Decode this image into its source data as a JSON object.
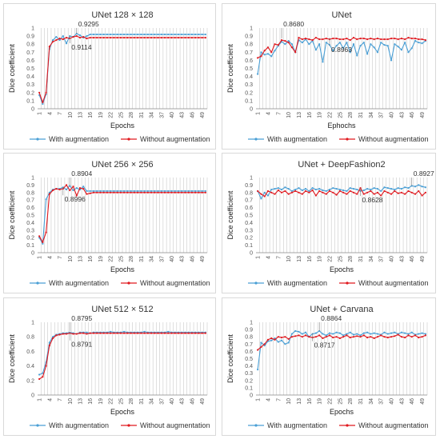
{
  "colors": {
    "with_aug": "#4a9fd5",
    "without_aug": "#e0191f",
    "grid": "#bfbfbf"
  },
  "chart_data": [
    {
      "type": "line",
      "title": "UNet 128 × 128",
      "xlabel": "Epochs",
      "ylabel": "Dice coefficient",
      "ylim": [
        0,
        1
      ],
      "yticks": [
        "0",
        "0.1",
        "0.2",
        "0.3",
        "0.4",
        "0.5",
        "0.6",
        "0.7",
        "0.8",
        "0.9",
        "1"
      ],
      "xticks": [
        1,
        4,
        7,
        10,
        13,
        16,
        19,
        22,
        25,
        28,
        31,
        34,
        37,
        40,
        43,
        46,
        49
      ],
      "legend_position": "bottom",
      "annotations": [
        {
          "text": "0.9295",
          "x": 12,
          "y": 0.93,
          "label_pos": "above"
        },
        {
          "text": "0.9114",
          "x": 10,
          "y": 0.91,
          "label_pos": "below"
        }
      ],
      "series": [
        {
          "name": "With augmentation",
          "values": [
            0.17,
            0.06,
            0.18,
            0.74,
            0.85,
            0.89,
            0.85,
            0.9,
            0.81,
            0.9,
            0.89,
            0.93,
            0.91,
            0.88,
            0.9,
            0.92,
            0.92,
            0.92,
            0.92,
            0.92,
            0.92,
            0.92,
            0.92,
            0.92,
            0.92,
            0.92,
            0.92,
            0.92,
            0.92,
            0.92,
            0.92,
            0.92,
            0.92,
            0.92,
            0.92,
            0.92,
            0.92,
            0.92,
            0.92,
            0.92,
            0.92,
            0.92,
            0.92,
            0.92,
            0.92,
            0.92,
            0.92,
            0.92,
            0.92,
            0.92
          ]
        },
        {
          "name": "Without augmentation",
          "values": [
            0.2,
            0.08,
            0.2,
            0.77,
            0.83,
            0.85,
            0.87,
            0.86,
            0.88,
            0.87,
            0.89,
            0.9,
            0.88,
            0.89,
            0.87,
            0.88,
            0.88,
            0.88,
            0.88,
            0.88,
            0.88,
            0.88,
            0.88,
            0.88,
            0.88,
            0.88,
            0.88,
            0.88,
            0.88,
            0.88,
            0.88,
            0.88,
            0.88,
            0.88,
            0.88,
            0.88,
            0.88,
            0.88,
            0.88,
            0.88,
            0.88,
            0.88,
            0.88,
            0.88,
            0.88,
            0.88,
            0.88,
            0.88,
            0.88,
            0.88
          ]
        }
      ]
    },
    {
      "type": "line",
      "title": "UNet",
      "xlabel": "Ephochs",
      "ylabel": "Dice coefficient",
      "ylim": [
        0,
        1
      ],
      "yticks": [
        "0",
        "0.1",
        "0.2",
        "0.3",
        "0.4",
        "0.5",
        "0.6",
        "0.7",
        "0.8",
        "0.9",
        "1"
      ],
      "xticks": [
        1,
        4,
        7,
        10,
        13,
        16,
        19,
        22,
        25,
        28,
        31,
        34,
        37,
        40,
        43,
        46,
        49
      ],
      "legend_position": "bottom",
      "annotations": [
        {
          "text": "0.8680",
          "x": 8,
          "y": 0.87,
          "label_pos": "above"
        },
        {
          "text": "0.8963",
          "x": 22,
          "y": 0.88,
          "label_pos": "below"
        }
      ],
      "series": [
        {
          "name": "With augmentation",
          "values": [
            0.43,
            0.7,
            0.67,
            0.68,
            0.65,
            0.72,
            0.78,
            0.83,
            0.8,
            0.84,
            0.8,
            0.7,
            0.85,
            0.82,
            0.86,
            0.8,
            0.84,
            0.73,
            0.8,
            0.58,
            0.82,
            0.79,
            0.72,
            0.78,
            0.82,
            0.75,
            0.82,
            0.7,
            0.8,
            0.66,
            0.78,
            0.82,
            0.68,
            0.8,
            0.76,
            0.7,
            0.82,
            0.79,
            0.78,
            0.6,
            0.8,
            0.77,
            0.73,
            0.82,
            0.7,
            0.75,
            0.84,
            0.82,
            0.81,
            0.84
          ]
        },
        {
          "name": "Without augmentation",
          "values": [
            0.63,
            0.65,
            0.72,
            0.76,
            0.7,
            0.8,
            0.79,
            0.85,
            0.84,
            0.82,
            0.76,
            0.7,
            0.88,
            0.86,
            0.87,
            0.86,
            0.85,
            0.88,
            0.86,
            0.86,
            0.87,
            0.86,
            0.87,
            0.87,
            0.86,
            0.86,
            0.87,
            0.85,
            0.88,
            0.86,
            0.87,
            0.87,
            0.86,
            0.87,
            0.86,
            0.87,
            0.86,
            0.86,
            0.86,
            0.87,
            0.87,
            0.86,
            0.87,
            0.86,
            0.88,
            0.87,
            0.87,
            0.86,
            0.86,
            0.85
          ]
        }
      ]
    },
    {
      "type": "line",
      "title": "UNet 256 × 256",
      "xlabel": "Epochs",
      "ylabel": "Dice coefficient",
      "ylim": [
        0,
        1
      ],
      "yticks": [
        "0",
        "0.1",
        "0.2",
        "0.3",
        "0.4",
        "0.5",
        "0.6",
        "0.7",
        "0.8",
        "0.9",
        "1"
      ],
      "xticks": [
        1,
        4,
        7,
        10,
        13,
        16,
        19,
        22,
        25,
        28,
        31,
        34,
        37,
        40,
        43,
        46,
        49
      ],
      "legend_position": "bottom",
      "annotations": [
        {
          "text": "0.8904",
          "x": 10,
          "y": 0.89,
          "label_pos": "above"
        },
        {
          "text": "0.8996",
          "x": 8,
          "y": 0.87,
          "label_pos": "below"
        }
      ],
      "series": [
        {
          "name": "With augmentation",
          "values": [
            0.2,
            0.12,
            0.71,
            0.8,
            0.84,
            0.85,
            0.85,
            0.87,
            0.84,
            0.89,
            0.83,
            0.86,
            0.84,
            0.88,
            0.82,
            0.82,
            0.82,
            0.82,
            0.82,
            0.82,
            0.82,
            0.82,
            0.82,
            0.82,
            0.82,
            0.82,
            0.82,
            0.82,
            0.82,
            0.82,
            0.82,
            0.82,
            0.82,
            0.82,
            0.82,
            0.82,
            0.82,
            0.82,
            0.82,
            0.82,
            0.82,
            0.82,
            0.82,
            0.82,
            0.82,
            0.82,
            0.82,
            0.82,
            0.82,
            0.82
          ]
        },
        {
          "name": "Without augmentation",
          "values": [
            0.22,
            0.14,
            0.27,
            0.78,
            0.83,
            0.85,
            0.84,
            0.85,
            0.9,
            0.83,
            0.88,
            0.76,
            0.86,
            0.85,
            0.78,
            0.79,
            0.8,
            0.8,
            0.8,
            0.8,
            0.8,
            0.8,
            0.8,
            0.8,
            0.8,
            0.8,
            0.8,
            0.8,
            0.8,
            0.8,
            0.8,
            0.8,
            0.8,
            0.8,
            0.8,
            0.8,
            0.8,
            0.8,
            0.8,
            0.8,
            0.8,
            0.8,
            0.8,
            0.8,
            0.8,
            0.8,
            0.8,
            0.8,
            0.8,
            0.8
          ]
        }
      ]
    },
    {
      "type": "line",
      "title": "UNet + DeepFashion2",
      "xlabel": "Epochs",
      "ylabel": "Dice coefficient",
      "ylim": [
        0,
        1
      ],
      "yticks": [
        "0",
        "0.1",
        "0.2",
        "0.3",
        "0.4",
        "0.5",
        "0.6",
        "0.7",
        "0.8",
        "0.9",
        "1"
      ],
      "xticks": [
        1,
        4,
        7,
        10,
        13,
        16,
        19,
        22,
        25,
        28,
        31,
        34,
        37,
        40,
        43,
        46,
        49
      ],
      "legend_position": "bottom",
      "annotations": [
        {
          "text": "0.8927",
          "x": 46,
          "y": 0.89,
          "label_pos": "above"
        },
        {
          "text": "0.8628",
          "x": 31,
          "y": 0.86,
          "label_pos": "below"
        }
      ],
      "series": [
        {
          "name": "With augmentation",
          "values": [
            0.82,
            0.72,
            0.8,
            0.76,
            0.84,
            0.85,
            0.86,
            0.84,
            0.87,
            0.85,
            0.82,
            0.84,
            0.86,
            0.83,
            0.85,
            0.82,
            0.86,
            0.84,
            0.85,
            0.83,
            0.82,
            0.84,
            0.86,
            0.85,
            0.84,
            0.83,
            0.82,
            0.86,
            0.85,
            0.84,
            0.82,
            0.83,
            0.85,
            0.84,
            0.86,
            0.85,
            0.82,
            0.87,
            0.86,
            0.85,
            0.84,
            0.86,
            0.85,
            0.87,
            0.86,
            0.89,
            0.88,
            0.9,
            0.88,
            0.87
          ]
        },
        {
          "name": "Without augmentation",
          "values": [
            0.82,
            0.78,
            0.75,
            0.82,
            0.8,
            0.78,
            0.83,
            0.8,
            0.82,
            0.78,
            0.8,
            0.82,
            0.8,
            0.78,
            0.82,
            0.8,
            0.83,
            0.76,
            0.82,
            0.8,
            0.78,
            0.82,
            0.8,
            0.77,
            0.82,
            0.8,
            0.78,
            0.82,
            0.8,
            0.78,
            0.86,
            0.78,
            0.8,
            0.82,
            0.78,
            0.8,
            0.76,
            0.82,
            0.8,
            0.78,
            0.82,
            0.79,
            0.8,
            0.78,
            0.82,
            0.8,
            0.78,
            0.82,
            0.76,
            0.8
          ]
        }
      ]
    },
    {
      "type": "line",
      "title": "UNet 512 × 512",
      "xlabel": "Epochs",
      "ylabel": "Dice coefficient",
      "ylim": [
        0,
        1
      ],
      "yticks": [
        "0",
        "0.2",
        "0.4",
        "0.6",
        "0.8",
        "1"
      ],
      "xticks": [
        1,
        4,
        7,
        10,
        13,
        16,
        19,
        22,
        25,
        28,
        31,
        34,
        37,
        40,
        43,
        46,
        49
      ],
      "legend_position": "bottom",
      "annotations": [
        {
          "text": "0.8795",
          "x": 10,
          "y": 0.88,
          "label_pos": "above"
        },
        {
          "text": "0.8791",
          "x": 10,
          "y": 0.86,
          "label_pos": "below"
        }
      ],
      "series": [
        {
          "name": "With augmentation",
          "values": [
            0.28,
            0.3,
            0.45,
            0.72,
            0.8,
            0.83,
            0.84,
            0.85,
            0.85,
            0.86,
            0.85,
            0.84,
            0.86,
            0.86,
            0.86,
            0.85,
            0.86,
            0.86,
            0.86,
            0.86,
            0.86,
            0.87,
            0.86,
            0.86,
            0.86,
            0.87,
            0.86,
            0.86,
            0.86,
            0.86,
            0.86,
            0.87,
            0.86,
            0.86,
            0.86,
            0.86,
            0.86,
            0.86,
            0.87,
            0.86,
            0.86,
            0.86,
            0.86,
            0.86,
            0.86,
            0.86,
            0.86,
            0.86,
            0.86,
            0.86
          ]
        },
        {
          "name": "Without augmentation",
          "values": [
            0.22,
            0.25,
            0.4,
            0.68,
            0.78,
            0.82,
            0.83,
            0.84,
            0.84,
            0.85,
            0.84,
            0.84,
            0.85,
            0.85,
            0.84,
            0.85,
            0.85,
            0.85,
            0.85,
            0.85,
            0.85,
            0.85,
            0.85,
            0.85,
            0.85,
            0.85,
            0.85,
            0.85,
            0.85,
            0.85,
            0.85,
            0.85,
            0.85,
            0.85,
            0.85,
            0.85,
            0.85,
            0.85,
            0.85,
            0.85,
            0.85,
            0.85,
            0.85,
            0.85,
            0.85,
            0.85,
            0.85,
            0.85,
            0.85,
            0.85
          ]
        }
      ]
    },
    {
      "type": "line",
      "title": "UNet + Carvana",
      "xlabel": "Epochs",
      "ylabel": "Dice coefficient",
      "ylim": [
        0,
        1
      ],
      "yticks": [
        "0",
        "0.1",
        "0.2",
        "0.3",
        "0.4",
        "0.5",
        "0.6",
        "0.7",
        "0.8",
        "0.9",
        "1"
      ],
      "xticks": [
        1,
        4,
        7,
        10,
        13,
        16,
        19,
        22,
        25,
        28,
        31,
        34,
        37,
        40,
        43,
        46,
        49
      ],
      "legend_position": "bottom",
      "annotations": [
        {
          "text": "0.8864",
          "x": 19,
          "y": 0.88,
          "label_pos": "above"
        },
        {
          "text": "0.8717",
          "x": 17,
          "y": 0.85,
          "label_pos": "below"
        }
      ],
      "series": [
        {
          "name": "With augmentation",
          "values": [
            0.35,
            0.72,
            0.68,
            0.74,
            0.75,
            0.78,
            0.73,
            0.75,
            0.7,
            0.72,
            0.84,
            0.88,
            0.87,
            0.84,
            0.86,
            0.8,
            0.84,
            0.85,
            0.88,
            0.84,
            0.82,
            0.85,
            0.84,
            0.86,
            0.85,
            0.82,
            0.84,
            0.86,
            0.83,
            0.84,
            0.82,
            0.85,
            0.86,
            0.84,
            0.85,
            0.84,
            0.83,
            0.86,
            0.84,
            0.85,
            0.86,
            0.84,
            0.86,
            0.85,
            0.84,
            0.86,
            0.83,
            0.84,
            0.85,
            0.84
          ]
        },
        {
          "name": "Without augmentation",
          "values": [
            0.62,
            0.66,
            0.7,
            0.76,
            0.78,
            0.76,
            0.8,
            0.79,
            0.8,
            0.77,
            0.8,
            0.81,
            0.82,
            0.8,
            0.82,
            0.8,
            0.79,
            0.8,
            0.82,
            0.78,
            0.8,
            0.82,
            0.79,
            0.8,
            0.78,
            0.8,
            0.82,
            0.79,
            0.8,
            0.81,
            0.8,
            0.82,
            0.79,
            0.8,
            0.78,
            0.8,
            0.82,
            0.8,
            0.79,
            0.8,
            0.81,
            0.83,
            0.8,
            0.79,
            0.82,
            0.8,
            0.82,
            0.79,
            0.8,
            0.82
          ]
        }
      ]
    }
  ]
}
